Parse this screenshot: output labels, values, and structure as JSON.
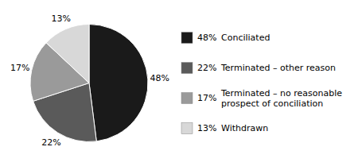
{
  "chart_data": {
    "type": "pie",
    "categories": [
      "Conciliated",
      "Terminated – other reason",
      "Terminated – no reasonable\nprospect of conciliation",
      "Withdrawn"
    ],
    "values": [
      48,
      22,
      17,
      13
    ],
    "value_labels": [
      "48%",
      "22%",
      "17%",
      "13%"
    ],
    "colors": [
      "#1a1a1a",
      "#5a5a5a",
      "#9a9a9a",
      "#d8d8d8"
    ],
    "legend": "right"
  }
}
